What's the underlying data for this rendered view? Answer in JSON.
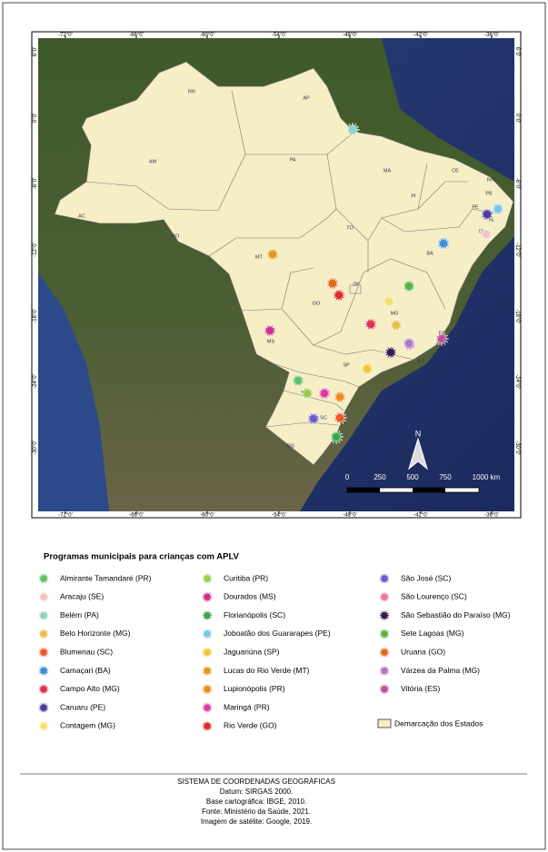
{
  "map": {
    "lon_ticks": [
      "-72°0'",
      "-66°0'",
      "-60°0'",
      "-54°0'",
      "-48°0'",
      "-42°0'",
      "-36°0'"
    ],
    "lat_ticks": [
      "6°0'",
      "0°0'",
      "-6°0'",
      "-12°0'",
      "-18°0'",
      "-24°0'",
      "-30°0'"
    ],
    "states": [
      "RR",
      "AP",
      "AM",
      "PA",
      "MA",
      "CE",
      "RN",
      "PB",
      "PE",
      "AL",
      "SE",
      "PI",
      "AC",
      "RO",
      "TO",
      "BA",
      "MT",
      "DF",
      "GO",
      "MG",
      "ES",
      "MS",
      "SP",
      "RJ",
      "PR",
      "SC",
      "RS"
    ],
    "north": "N",
    "scale": [
      "0",
      "250",
      "500",
      "750",
      "1000 km"
    ]
  },
  "legend": {
    "title": "Programas municipais para crianças com APLV",
    "items": [
      {
        "name": "Almirante Tamandaré (PR)",
        "color": "#5fbf6a"
      },
      {
        "name": "Aracaju (SE)",
        "color": "#f2c6c0"
      },
      {
        "name": "Belém (PA)",
        "color": "#8fd2c0"
      },
      {
        "name": "Belo Horizonte (MG)",
        "color": "#e8c04a"
      },
      {
        "name": "Blumenau (SC)",
        "color": "#f0562a"
      },
      {
        "name": "Camaçari (BA)",
        "color": "#3f8fd6"
      },
      {
        "name": "Campo Alto (MG)",
        "color": "#e0304e"
      },
      {
        "name": "Caruaru (PE)",
        "color": "#4a3a9a"
      },
      {
        "name": "Contagem (MG)",
        "color": "#f4e070"
      },
      {
        "name": "Curitiba (PR)",
        "color": "#9ccc4a"
      },
      {
        "name": "Dourados (MS)",
        "color": "#d0308a"
      },
      {
        "name": "Florianópolis (SC)",
        "color": "#3aa848"
      },
      {
        "name": "Joboatão dos Guararapes (PE)",
        "color": "#7ec4e8"
      },
      {
        "name": "Jaguariúna (SP)",
        "color": "#f0c830"
      },
      {
        "name": "Lucas do Rio Verde (MT)",
        "color": "#e09a20"
      },
      {
        "name": "Lupionópolis (PR)",
        "color": "#f08a20"
      },
      {
        "name": "Maringá (PR)",
        "color": "#e03aa0"
      },
      {
        "name": "Rio Verde (GO)",
        "color": "#e02a2a"
      },
      {
        "name": "São José (SC)",
        "color": "#6a5ac8"
      },
      {
        "name": "São Lourenço (SC)",
        "color": "#e87aa0"
      },
      {
        "name": "São Sebastião do Paraíso (MG)",
        "color": "#3a1a4a"
      },
      {
        "name": "Sete Lagoas (MG)",
        "color": "#5ab040"
      },
      {
        "name": "Uruana (GO)",
        "color": "#e06a1a"
      },
      {
        "name": "Várzea da Palma (MG)",
        "color": "#b07ac0"
      },
      {
        "name": "Vitória (ES)",
        "color": "#c0509a"
      }
    ],
    "states_label": "Demarcação dos Estados"
  },
  "footer": [
    "SISTEMA DE COORDENADAS GEOGRÁFICAS",
    "Datum: SIRGAS 2000.",
    "Base cartográfica: IBGE, 2010.",
    "Fonte: Ministério da Saúde, 2021.",
    "Imagem de satélite: Google, 2019."
  ]
}
